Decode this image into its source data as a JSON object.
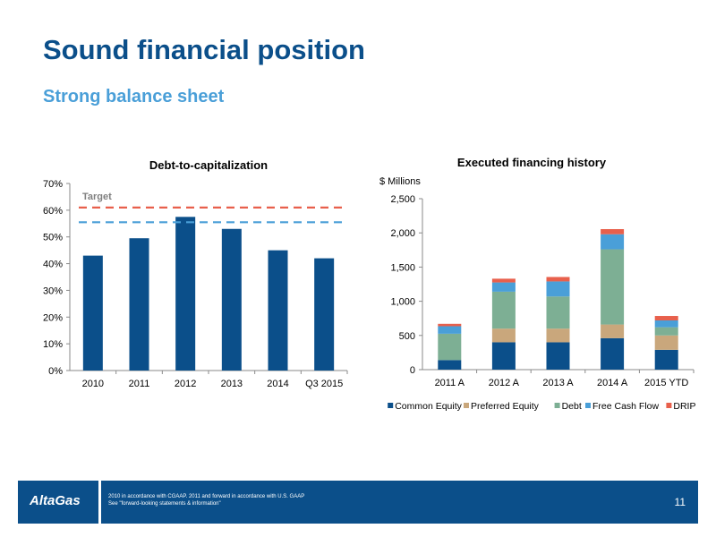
{
  "slide": {
    "title": "Sound financial position",
    "subtitle": "Strong balance sheet"
  },
  "chart_data": [
    {
      "type": "bar",
      "title": "Debt-to-capitalization",
      "categories": [
        "2010",
        "2011",
        "2012",
        "2013",
        "2014",
        "Q3 2015"
      ],
      "values": [
        43,
        49.5,
        57.5,
        53,
        45,
        42
      ],
      "ylim": [
        0,
        70
      ],
      "yticks": [
        "0%",
        "10%",
        "20%",
        "30%",
        "40%",
        "50%",
        "60%",
        "70%"
      ],
      "color": "#0b4f8a",
      "target": {
        "label": "Target",
        "upper": 61,
        "lower": 55.5,
        "upper_color": "#e8604c",
        "lower_color": "#4a9fd8"
      }
    },
    {
      "type": "bar",
      "stacked": true,
      "title": "Executed financing history",
      "ylabel": "$ Millions",
      "categories": [
        "2011 A",
        "2012 A",
        "2013 A",
        "2014 A",
        "2015 YTD"
      ],
      "ylim": [
        0,
        2500
      ],
      "yticks": [
        "0",
        "500",
        "1,000",
        "1,500",
        "2,000",
        "2,500"
      ],
      "legend_position": "bottom",
      "series": [
        {
          "name": "Common Equity",
          "color": "#0b4f8a",
          "values": [
            140,
            400,
            400,
            460,
            290
          ]
        },
        {
          "name": "Preferred Equity",
          "color": "#c9a77c",
          "values": [
            0,
            200,
            200,
            200,
            210
          ]
        },
        {
          "name": "Debt",
          "color": "#7daf94",
          "values": [
            385,
            540,
            470,
            1100,
            120
          ]
        },
        {
          "name": "Free Cash Flow",
          "color": "#4a9fd8",
          "values": [
            110,
            135,
            220,
            220,
            100
          ]
        },
        {
          "name": "DRIP",
          "color": "#e8604c",
          "values": [
            35,
            55,
            65,
            75,
            65
          ]
        }
      ]
    }
  ],
  "footer": {
    "logo": "AltaGas",
    "note_line1": "2010 in accordance with CGAAP. 2011 and forward in accordance with U.S. GAAP",
    "note_line2": "See \"forward-looking statements & information\"",
    "page_number": "11"
  }
}
